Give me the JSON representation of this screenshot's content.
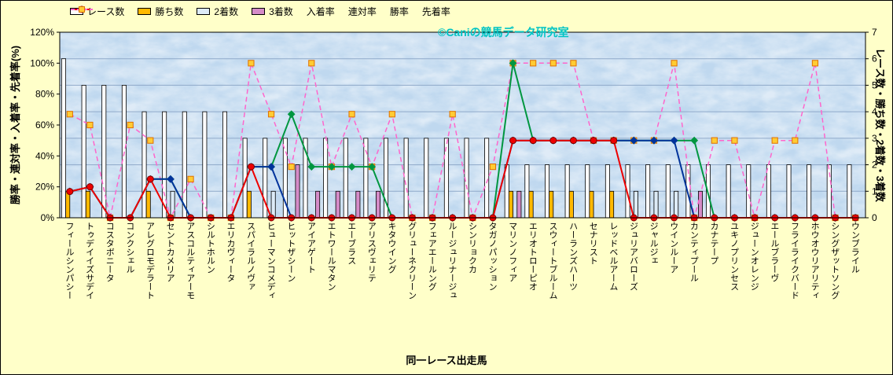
{
  "watermark": "©Caniの競馬データ研究室",
  "chart_data": {
    "type": "bar",
    "subtype": "bar-line-combo",
    "title": "",
    "xlabel": "同一レース出走馬",
    "ylabel_left": "勝率・連対率・入着率・先着率(%)",
    "ylabel_right": "レース数・勝ち数・2着数・3着数",
    "y_left": {
      "min": 0,
      "max": 120,
      "step": 20,
      "unit": "%",
      "ticks": [
        "0%",
        "20%",
        "40%",
        "60%",
        "80%",
        "100%",
        "120%"
      ]
    },
    "y_right": {
      "min": 0,
      "max": 7,
      "step": 1,
      "ticks": [
        "0",
        "1",
        "2",
        "3",
        "4",
        "5",
        "6",
        "7"
      ]
    },
    "legend_position": "top",
    "grid": "horizontal",
    "categories": [
      "フィールシンパシー",
      "トゥデイイズサデイ",
      "コスタボニータ",
      "コンクシェル",
      "アレグロモデラート",
      "セントカメリア",
      "アスコルティアーモ",
      "シルトホルン",
      "エリカヴィータ",
      "スパイラルノヴァ",
      "ヒューマンコメディ",
      "ヒットザシーン",
      "アイアゲート",
      "エトワールマタン",
      "エーブラス",
      "アリスヴェリテ",
      "キタウイング",
      "グリューネクリーン",
      "フェアエールング",
      "ルージュリナージュ",
      "シンリョクカ",
      "タガノパッション",
      "マリンノフィア",
      "エリオトローピオ",
      "スウィートブルーム",
      "ハーランズハーツ",
      "セナリスト",
      "レッドベルアーム",
      "ジュリアバローズ",
      "ジャルジェ",
      "ウインルーア",
      "カンティプール",
      "カナテープ",
      "ユキノプリンセス",
      "ジューンオレンジ",
      "エールブラーヴ",
      "フライライクバード",
      "ホウオウリアリティ",
      "シングザットソング",
      "ウンブライル"
    ],
    "series": [
      {
        "key": "races",
        "name": "レース数",
        "type": "bar",
        "axis": "right",
        "color": "#FDFDFD",
        "values": [
          6,
          5,
          5,
          5,
          4,
          4,
          4,
          4,
          4,
          3,
          3,
          3,
          3,
          3,
          3,
          3,
          3,
          3,
          3,
          3,
          3,
          3,
          2,
          2,
          2,
          2,
          2,
          2,
          2,
          2,
          2,
          2,
          2,
          2,
          2,
          2,
          2,
          2,
          2,
          2
        ]
      },
      {
        "key": "wins",
        "name": "勝ち数",
        "type": "bar",
        "axis": "right",
        "color": "#FFB900",
        "values": [
          1,
          1,
          0,
          0,
          1,
          0,
          0,
          0,
          0,
          1,
          0,
          0,
          0,
          0,
          0,
          0,
          0,
          0,
          0,
          0,
          0,
          0,
          1,
          1,
          1,
          1,
          1,
          1,
          0,
          0,
          0,
          0,
          0,
          0,
          0,
          0,
          0,
          0,
          0,
          0
        ]
      },
      {
        "key": "seconds",
        "name": "2着数",
        "type": "bar",
        "axis": "right",
        "color": "#DDEBF7",
        "values": [
          0,
          0,
          0,
          0,
          0,
          1,
          0,
          0,
          0,
          0,
          1,
          0,
          0,
          0,
          0,
          0,
          0,
          0,
          0,
          0,
          0,
          0,
          0,
          0,
          0,
          0,
          0,
          0,
          1,
          1,
          1,
          0,
          0,
          0,
          0,
          0,
          0,
          0,
          0,
          0
        ]
      },
      {
        "key": "thirds",
        "name": "3着数",
        "type": "bar",
        "axis": "right",
        "color": "#D58CC8",
        "values": [
          0,
          0,
          0,
          0,
          0,
          0,
          0,
          0,
          0,
          0,
          0,
          2,
          1,
          1,
          1,
          1,
          0,
          0,
          0,
          0,
          0,
          0,
          1,
          0,
          0,
          0,
          0,
          0,
          0,
          0,
          0,
          1,
          0,
          0,
          0,
          0,
          0,
          0,
          0,
          0
        ]
      },
      {
        "key": "place-rate",
        "name": "入着率",
        "type": "line",
        "axis": "left",
        "color": "#009640",
        "marker": "diamond",
        "dash": false,
        "values": [
          17,
          20,
          0,
          0,
          25,
          25,
          0,
          0,
          0,
          33,
          33,
          67,
          33,
          33,
          33,
          33,
          0,
          0,
          0,
          0,
          0,
          0,
          100,
          50,
          50,
          50,
          50,
          50,
          50,
          50,
          50,
          50,
          0,
          0,
          0,
          0,
          0,
          0,
          0,
          0
        ]
      },
      {
        "key": "quinella-rate",
        "name": "連対率",
        "type": "line",
        "axis": "left",
        "color": "#00339B",
        "marker": "diamond",
        "dash": false,
        "values": [
          17,
          20,
          0,
          0,
          25,
          25,
          0,
          0,
          0,
          33,
          33,
          0,
          0,
          0,
          0,
          0,
          0,
          0,
          0,
          0,
          0,
          0,
          50,
          50,
          50,
          50,
          50,
          50,
          50,
          50,
          50,
          0,
          0,
          0,
          0,
          0,
          0,
          0,
          0,
          0
        ]
      },
      {
        "key": "win-rate",
        "name": "勝率",
        "type": "line",
        "axis": "left",
        "color": "#EE0000",
        "marker": "circle",
        "dash": false,
        "values": [
          17,
          20,
          0,
          0,
          25,
          0,
          0,
          0,
          0,
          33,
          0,
          0,
          0,
          0,
          0,
          0,
          0,
          0,
          0,
          0,
          0,
          0,
          50,
          50,
          50,
          50,
          50,
          50,
          0,
          0,
          0,
          0,
          0,
          0,
          0,
          0,
          0,
          0,
          0,
          0
        ]
      },
      {
        "key": "first-finish-rate",
        "name": "先着率",
        "type": "line",
        "axis": "left",
        "color": "#FF66CC",
        "marker": "square",
        "dash": true,
        "values": [
          67,
          60,
          0,
          60,
          50,
          0,
          25,
          0,
          0,
          100,
          67,
          33,
          100,
          33,
          67,
          33,
          67,
          0,
          0,
          67,
          0,
          33,
          100,
          100,
          100,
          100,
          50,
          50,
          50,
          50,
          100,
          0,
          50,
          50,
          0,
          50,
          50,
          100,
          0,
          0
        ]
      }
    ],
    "marker_colors": {
      "square_fill": "#FFCC33",
      "square_stroke": "#E07000",
      "circle_stroke": "#7A0000"
    },
    "plot_colors": {
      "background": "#BFD8EF",
      "gridline": "#8FA9C9",
      "border": "#000000"
    }
  }
}
